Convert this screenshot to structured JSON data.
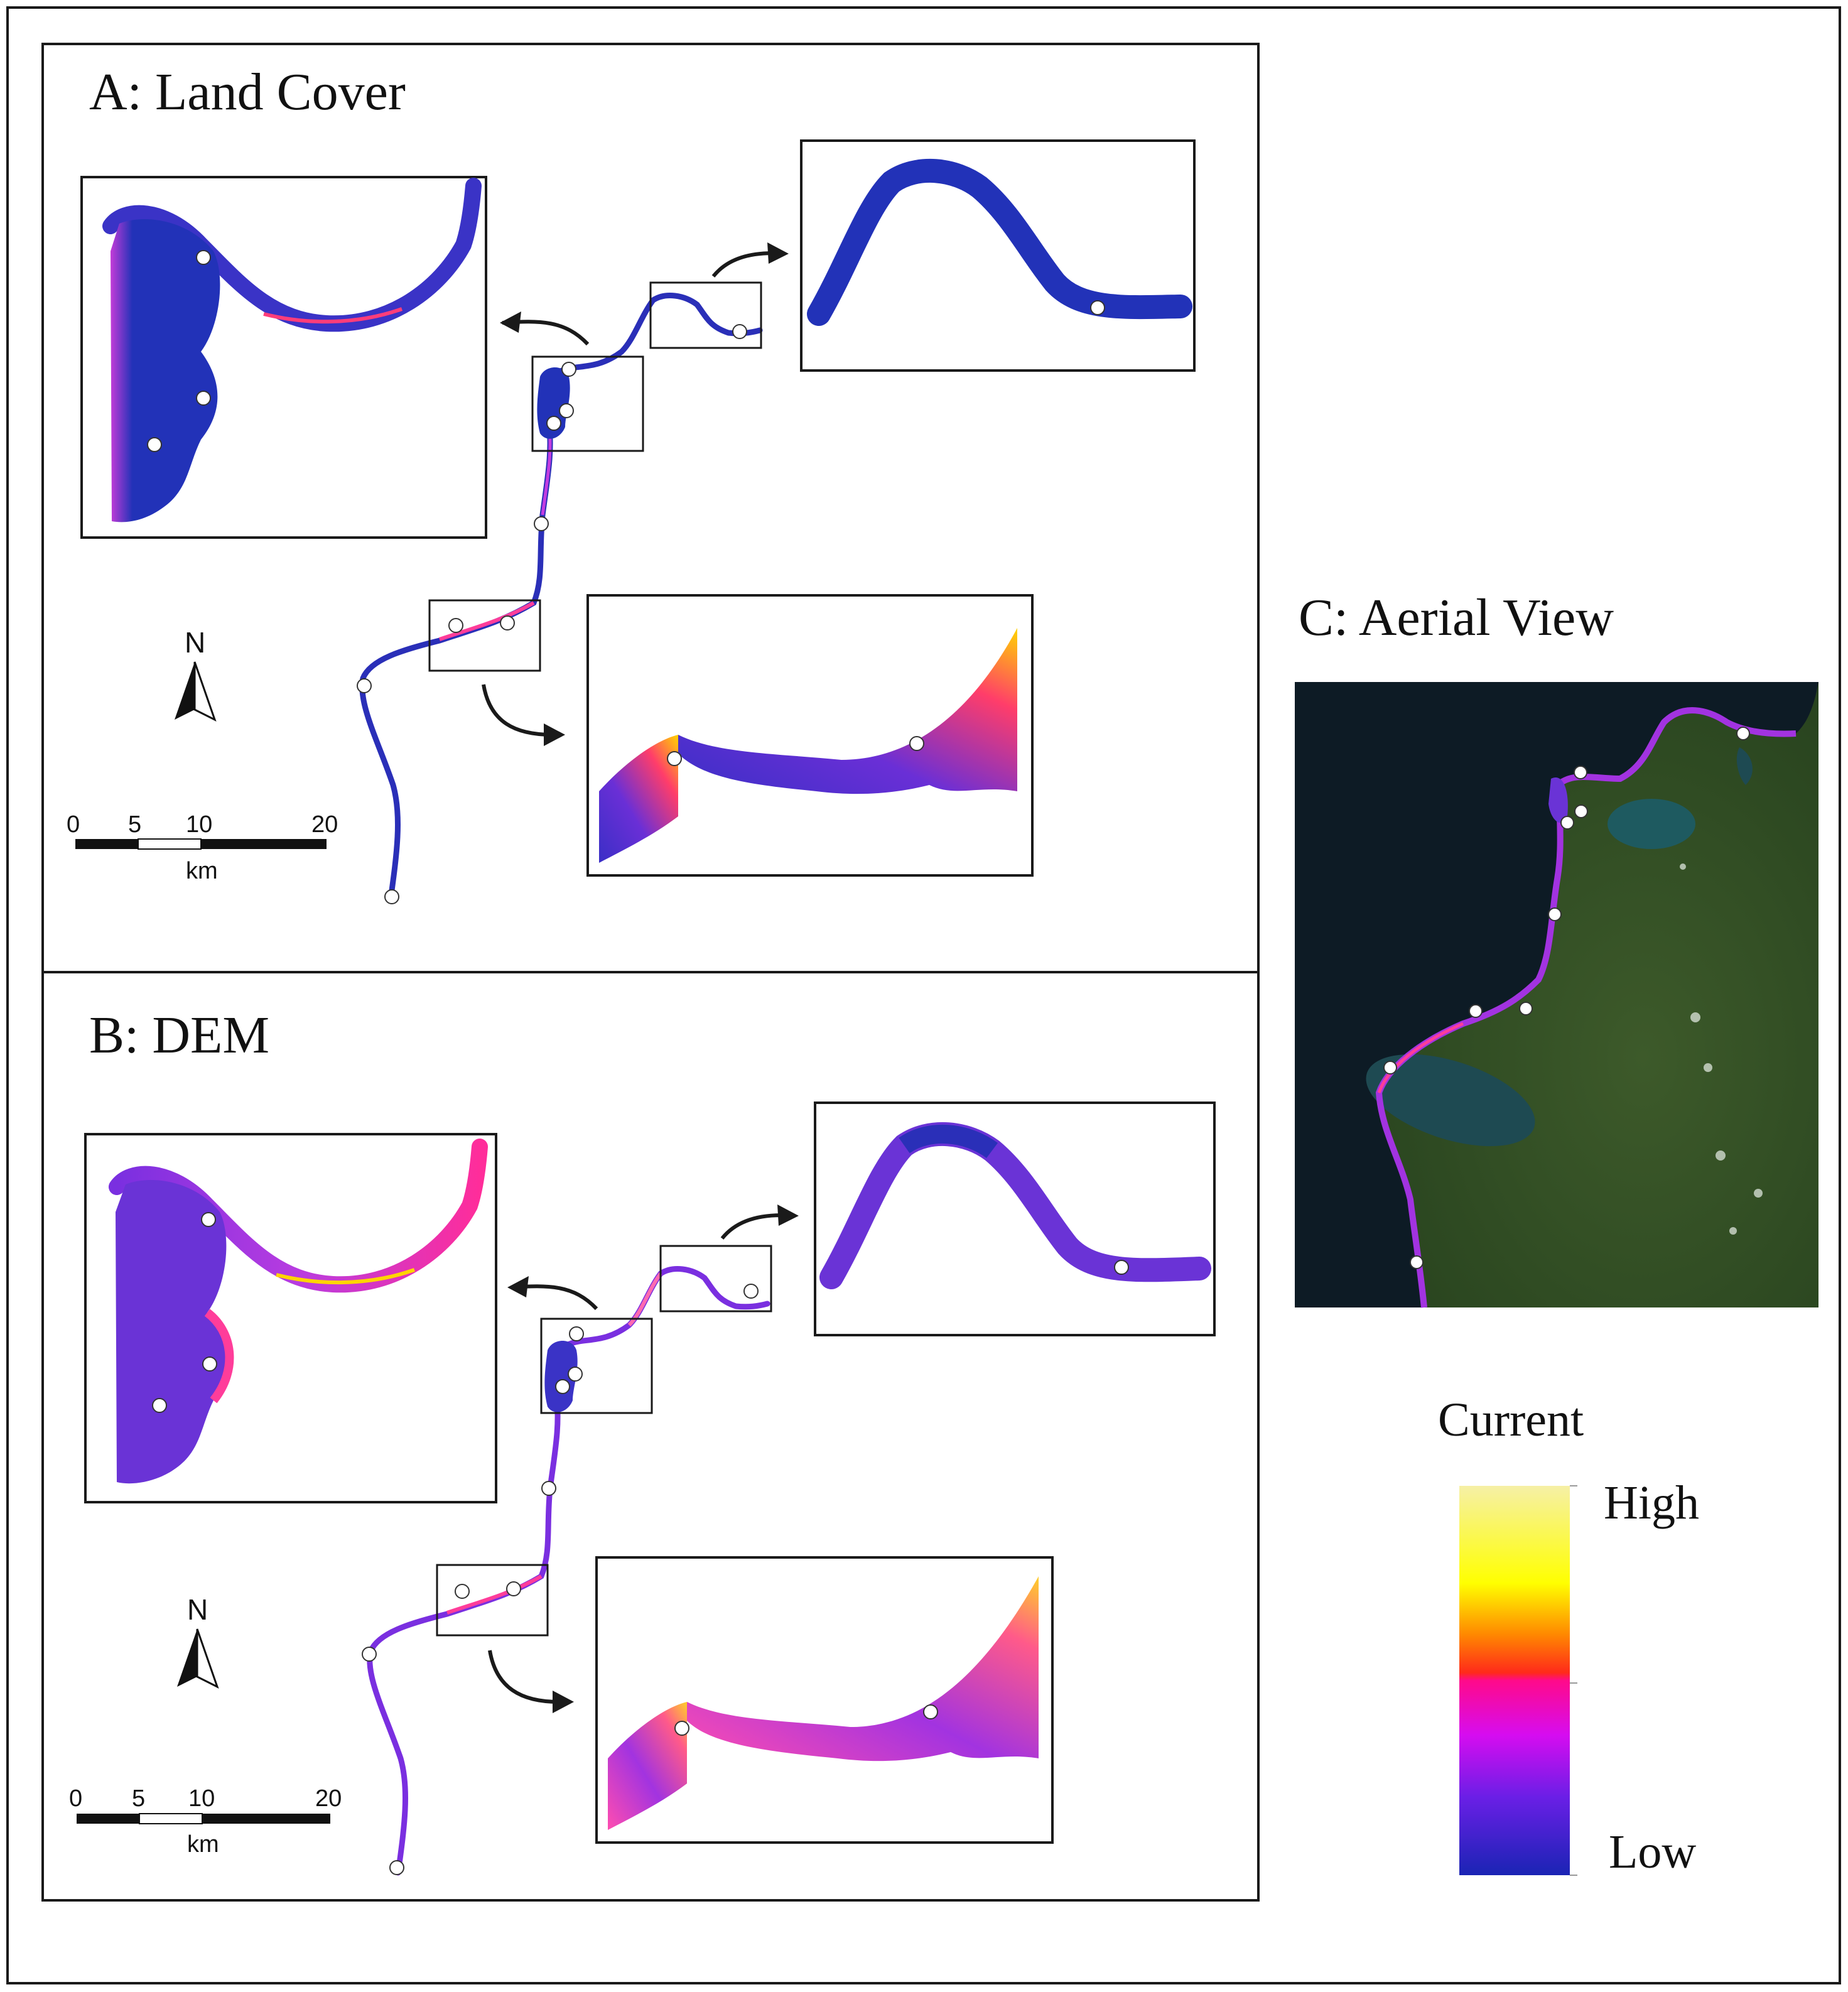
{
  "panels": {
    "a": {
      "title": "A: Land Cover"
    },
    "b": {
      "title": "B: DEM"
    },
    "c": {
      "title": "C: Aerial View"
    }
  },
  "north_arrow": {
    "label": "N"
  },
  "scale_bar": {
    "ticks": [
      "0",
      "5",
      "10",
      "20"
    ],
    "unit": "km"
  },
  "legend": {
    "title": "Current",
    "high_label": "High",
    "low_label": "Low"
  },
  "colors": {
    "low": "#1d2ab8",
    "mid_low": "#9a18f0",
    "mid": "#ff0aa0",
    "mid_high": "#ff6a00",
    "high": "#ffff00",
    "highest": "#f8f3a0",
    "marker": "#ffffff",
    "aerial_water": "#0c1a24",
    "aerial_land": "#2f4a22"
  }
}
